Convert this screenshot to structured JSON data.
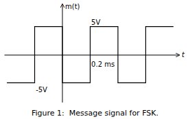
{
  "chart_data": {
    "type": "line",
    "title": "Figure 1:  Message signal for FSK.",
    "xlabel": "t",
    "ylabel": "m(t)",
    "x": [
      -1.0,
      -0.5,
      -0.5,
      0.0,
      0.0,
      0.5,
      0.5,
      1.0,
      1.0,
      1.5,
      1.5,
      2.0
    ],
    "values": [
      -5,
      -5,
      5,
      5,
      -5,
      -5,
      5,
      5,
      -5,
      -5,
      5,
      5
    ],
    "color": "#000000",
    "xlim": [
      -1.05,
      2.1
    ],
    "ylim": [
      -8.5,
      9.0
    ],
    "tick_labels": false,
    "annotations": [
      {
        "text": "5V",
        "x": 0.52,
        "y": 5.3
      },
      {
        "text": "-5V",
        "x": -0.48,
        "y": -5.8
      },
      {
        "text": "0.2 ms",
        "x": 0.52,
        "y": -1.2
      }
    ]
  }
}
